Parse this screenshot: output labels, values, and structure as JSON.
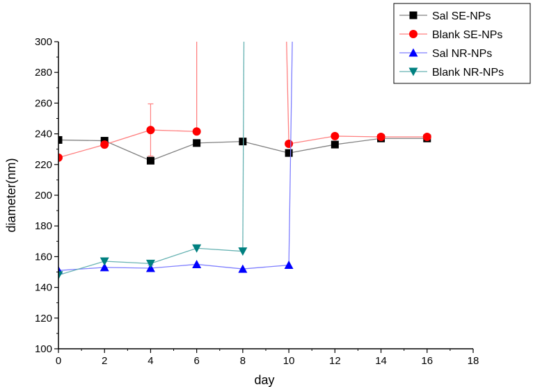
{
  "chart_data": {
    "type": "line",
    "xlabel": "day",
    "ylabel": "diameter(nm)",
    "xlim": [
      0,
      18
    ],
    "ylim": [
      100,
      300
    ],
    "xticks": [
      0,
      2,
      4,
      6,
      8,
      10,
      12,
      14,
      16,
      18
    ],
    "yticks": [
      100,
      120,
      140,
      160,
      180,
      200,
      220,
      240,
      260,
      280,
      300
    ],
    "grid": false,
    "legend_position": "top-right",
    "series": [
      {
        "name": "Sal SE-NPs",
        "color": "#000000",
        "line_color": "#808080",
        "marker": "square",
        "x": [
          0,
          2,
          4,
          6,
          8,
          10,
          12,
          14,
          16
        ],
        "y": [
          236,
          235.5,
          222.5,
          234,
          235,
          227.5,
          233,
          237,
          237
        ],
        "error": [
          0,
          0,
          2,
          0,
          0,
          0,
          0,
          0,
          0
        ],
        "segments": [
          [
            0,
            8
          ]
        ]
      },
      {
        "name": "Blank SE-NPs",
        "color": "#ff0000",
        "line_color": "#ff7f7f",
        "marker": "circle",
        "x": [
          0,
          2,
          4,
          6,
          10,
          12,
          14,
          16
        ],
        "y": [
          224.5,
          233,
          242.5,
          241.5,
          233.5,
          238.5,
          238,
          238
        ],
        "error": [
          0,
          2,
          17,
          0,
          0,
          0,
          0,
          0
        ],
        "segments": [
          [
            0,
            3
          ],
          [
            4,
            7
          ]
        ],
        "off_scale_lines": [
          [
            6,
            241.5,
            6,
            300
          ],
          [
            9.9,
            300,
            10,
            233.5
          ]
        ]
      },
      {
        "name": "Sal NR-NPs",
        "color": "#0000ff",
        "line_color": "#7f7fff",
        "marker": "triangle-up",
        "x": [
          0,
          2,
          4,
          6,
          8,
          10
        ],
        "y": [
          151,
          153,
          152.5,
          155,
          152,
          154.5
        ],
        "error": [
          0,
          0,
          2,
          0,
          0,
          0
        ],
        "segments": [
          [
            0,
            5
          ]
        ],
        "off_scale_lines": [
          [
            10,
            154.5,
            10.15,
            300
          ]
        ]
      },
      {
        "name": "Blank NR-NPs",
        "color": "#008080",
        "line_color": "#66b2b2",
        "marker": "triangle-down",
        "x": [
          0,
          2,
          4,
          6,
          8
        ],
        "y": [
          148,
          157,
          155.5,
          165.5,
          163.5
        ],
        "error": [
          0,
          0,
          0,
          0,
          0
        ],
        "segments": [
          [
            0,
            4
          ]
        ],
        "off_scale_lines": [
          [
            8,
            163.5,
            8.05,
            300
          ]
        ]
      }
    ]
  }
}
